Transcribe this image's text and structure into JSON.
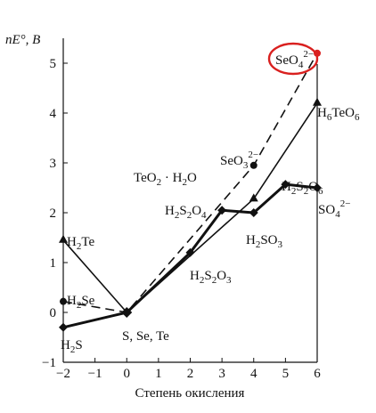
{
  "chart_data": {
    "type": "line",
    "ylabel": "nE°, В",
    "xlabel": "Степень окисления",
    "xlim": [
      -2,
      6
    ],
    "ylim": [
      -1,
      5.5
    ],
    "xticks": [
      "−2",
      "−1",
      "0",
      "1",
      "2",
      "3",
      "4",
      "5",
      "6"
    ],
    "yticks": [
      "−1",
      "0",
      "1",
      "2",
      "3",
      "4",
      "5"
    ],
    "grid": false,
    "series": [
      {
        "element": "S",
        "style": "thick-solid",
        "points": [
          {
            "x": -2,
            "y": -0.3,
            "label": "H2S"
          },
          {
            "x": 0,
            "y": 0.0,
            "label": "S"
          },
          {
            "x": 2,
            "y": 1.2,
            "label": "H2S2O3"
          },
          {
            "x": 3,
            "y": 2.05,
            "label": "H2S2O4"
          },
          {
            "x": 4,
            "y": 2.0,
            "label": "H2SO3"
          },
          {
            "x": 5,
            "y": 2.57,
            "label": "H2S2O6"
          },
          {
            "x": 6,
            "y": 2.5,
            "label": "SO4 2−"
          }
        ]
      },
      {
        "element": "Se",
        "style": "dashed",
        "points": [
          {
            "x": -2,
            "y": 0.22,
            "label": "H2Se"
          },
          {
            "x": 0,
            "y": 0.0,
            "label": "Se"
          },
          {
            "x": 4,
            "y": 2.95,
            "label": "SeO3 2−"
          },
          {
            "x": 6,
            "y": 5.2,
            "label": "SeO4 2−"
          }
        ]
      },
      {
        "element": "Te",
        "style": "thin-solid",
        "points": [
          {
            "x": -2,
            "y": 1.45,
            "label": "H2Te"
          },
          {
            "x": 0,
            "y": 0.0,
            "label": "Te"
          },
          {
            "x": 4,
            "y": 2.28,
            "label": "TeO2·H2O"
          },
          {
            "x": 6,
            "y": 4.2,
            "label": "H6TeO6"
          }
        ]
      }
    ],
    "annotations": {
      "s_se_te": "S, Se, Te",
      "highlight": "SeO4 2−",
      "highlight_color": "#d9201f"
    }
  }
}
